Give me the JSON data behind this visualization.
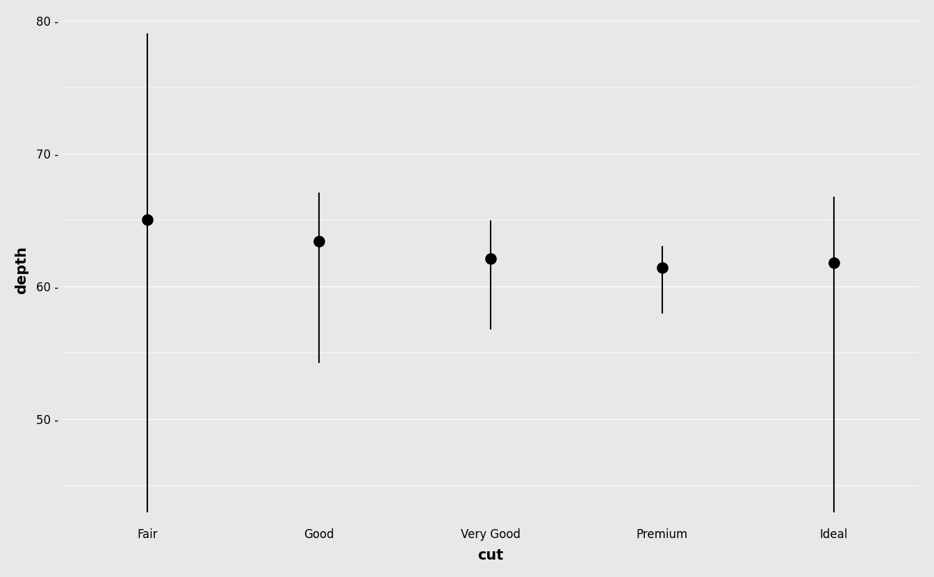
{
  "categories": [
    "Fair",
    "Good",
    "Very Good",
    "Premium",
    "Ideal"
  ],
  "min_depth": [
    43.0,
    54.3,
    56.8,
    58.0,
    43.0
  ],
  "max_depth": [
    79.0,
    67.0,
    64.9,
    63.0,
    66.7
  ],
  "median_depth": [
    65.0,
    63.4,
    62.1,
    61.4,
    61.8
  ],
  "background_color": "#e8e8e8",
  "line_color": "#000000",
  "point_color": "#000000",
  "xlabel": "cut",
  "ylabel": "depth",
  "ylim": [
    42.0,
    80.5
  ],
  "yticks": [
    50,
    60,
    70,
    80
  ],
  "grid_color": "#ffffff",
  "line_width": 1.5,
  "point_size": 120,
  "axis_label_fontsize": 15,
  "tick_fontsize": 12
}
